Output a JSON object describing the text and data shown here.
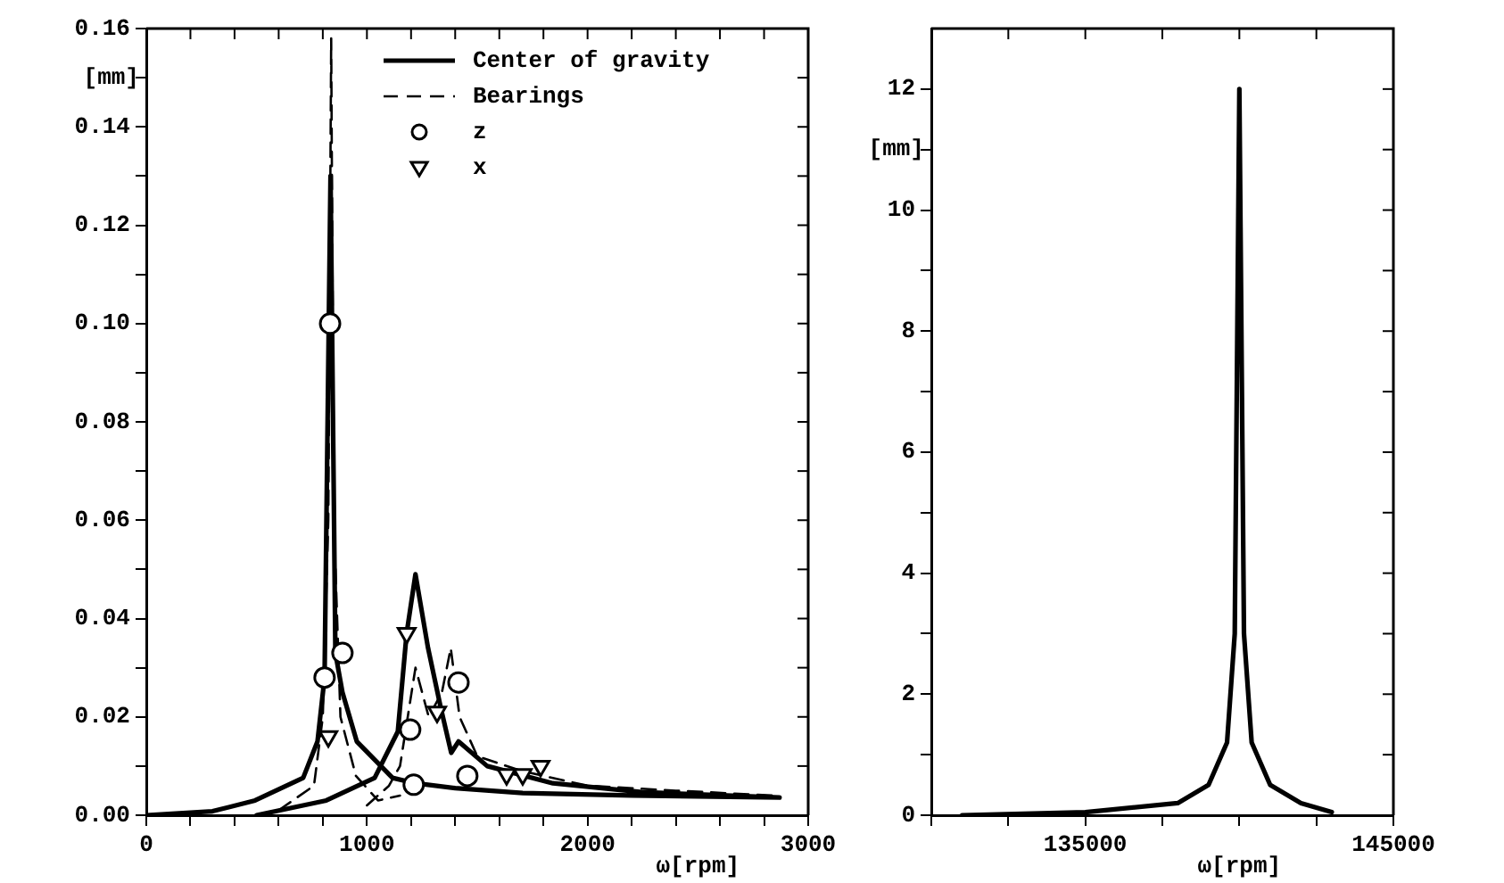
{
  "chart_data": [
    {
      "type": "line",
      "xlabel": "ω[rpm]",
      "ylabel": "[mm]",
      "xlim": [
        0,
        3000
      ],
      "ylim": [
        0,
        0.16
      ],
      "xticks": [
        0,
        {
          "value": 200,
          "label": null
        },
        {
          "value": 400,
          "label": null
        },
        {
          "value": 600,
          "label": null
        },
        {
          "value": 800,
          "label": null
        },
        1000,
        {
          "value": 1200,
          "label": null
        },
        {
          "value": 1400,
          "label": null
        },
        {
          "value": 1600,
          "label": null
        },
        {
          "value": 1800,
          "label": null
        },
        2000,
        {
          "value": 2200,
          "label": null
        },
        {
          "value": 2400,
          "label": null
        },
        {
          "value": 2600,
          "label": null
        },
        {
          "value": 2800,
          "label": null
        },
        3000
      ],
      "yticks": [
        {
          "value": 0,
          "label": "0.00"
        },
        {
          "value": 0.01,
          "label": null
        },
        {
          "value": 0.02,
          "label": "0.02"
        },
        {
          "value": 0.03,
          "label": null
        },
        {
          "value": 0.04,
          "label": "0.04"
        },
        {
          "value": 0.05,
          "label": null
        },
        {
          "value": 0.06,
          "label": "0.06"
        },
        {
          "value": 0.07,
          "label": null
        },
        {
          "value": 0.08,
          "label": "0.08"
        },
        {
          "value": 0.09,
          "label": null
        },
        {
          "value": 0.1,
          "label": "0.10"
        },
        {
          "value": 0.11,
          "label": null
        },
        {
          "value": 0.12,
          "label": "0.12"
        },
        {
          "value": 0.13,
          "label": null
        },
        {
          "value": 0.14,
          "label": "0.14"
        },
        {
          "value": 0.15,
          "label": null
        },
        {
          "value": 0.16,
          "label": "0.16"
        }
      ],
      "legend": "top right",
      "series": [
        {
          "name": "Center of gravity",
          "line_style": "solid",
          "marker": "none",
          "color": "#000000",
          "x": [
            0,
            300,
            493,
            711,
            776,
            808,
            835,
            857,
            889,
            954,
            1116,
            1220,
            1400,
            1706,
            2200,
            2870,
            null,
            500,
            816,
            1035,
            1140,
            1180,
            1220,
            1277,
            1334,
            1382,
            1415,
            1545,
            1843,
            2247,
            2870
          ],
          "values": [
            0,
            0.0008,
            0.003,
            0.0076,
            0.015,
            0.028,
            0.13,
            0.033,
            0.025,
            0.015,
            0.0076,
            0.0065,
            0.0055,
            0.0045,
            0.004,
            0.0036,
            null,
            0,
            0.003,
            0.0076,
            0.017,
            0.037,
            0.049,
            0.034,
            0.022,
            0.0127,
            0.015,
            0.01,
            0.0065,
            0.0047,
            0.0036
          ]
        },
        {
          "name": "Bearings",
          "line_style": "dashed",
          "marker": "none",
          "color": "#000000",
          "x": [
            600,
            760,
            800,
            825,
            838,
            850,
            880,
            950,
            1050,
            1150,
            null,
            1000,
            1100,
            1150,
            1220,
            1280,
            1340,
            1380,
            1420,
            1500,
            1700,
            2000,
            2400,
            2850
          ],
          "values": [
            0.001,
            0.006,
            0.02,
            0.06,
            0.158,
            0.06,
            0.02,
            0.008,
            0.003,
            0.004,
            null,
            0.002,
            0.006,
            0.01,
            0.03,
            0.02,
            0.025,
            0.034,
            0.02,
            0.012,
            0.009,
            0.006,
            0.005,
            0.004
          ]
        },
        {
          "name": "z",
          "type": "scatter",
          "marker": "circle",
          "color": "#000000",
          "x": [
            833,
            808,
            889,
            1196,
            1212,
            1415,
            1455
          ],
          "values": [
            0.1,
            0.028,
            0.033,
            0.0174,
            0.0062,
            0.027,
            0.008
          ]
        },
        {
          "name": "x",
          "type": "scatter",
          "marker": "triangle",
          "color": "#000000",
          "x": [
            825,
            1180,
            1318,
            1633,
            1706,
            1787
          ],
          "values": [
            0.016,
            0.037,
            0.021,
            0.0083,
            0.0083,
            0.01
          ]
        }
      ]
    },
    {
      "type": "line",
      "xlabel": "ω[rpm]",
      "ylabel": "[mm]",
      "xlim": [
        130000,
        145000
      ],
      "ylim": [
        0,
        13
      ],
      "xticks": [
        {
          "value": 130000,
          "label": null
        },
        {
          "value": 132500,
          "label": null
        },
        135000,
        {
          "value": 137500,
          "label": null
        },
        {
          "value": 140000,
          "label": null
        },
        {
          "value": 142500,
          "label": null
        },
        145000
      ],
      "yticks": [
        0,
        {
          "value": 1,
          "label": null
        },
        2,
        {
          "value": 3,
          "label": null
        },
        4,
        {
          "value": 5,
          "label": null
        },
        6,
        {
          "value": 7,
          "label": null
        },
        8,
        {
          "value": 9,
          "label": null
        },
        10,
        {
          "value": 11,
          "label": null
        },
        12
      ],
      "series": [
        {
          "line_style": "solid",
          "marker": "none",
          "color": "#000000",
          "x": [
            131000,
            135000,
            138000,
            139000,
            139600,
            139850,
            140000,
            140150,
            140400,
            141000,
            142000,
            143000
          ],
          "values": [
            0,
            0.05,
            0.2,
            0.5,
            1.2,
            3,
            12,
            3,
            1.2,
            0.5,
            0.2,
            0.05
          ]
        }
      ]
    }
  ]
}
